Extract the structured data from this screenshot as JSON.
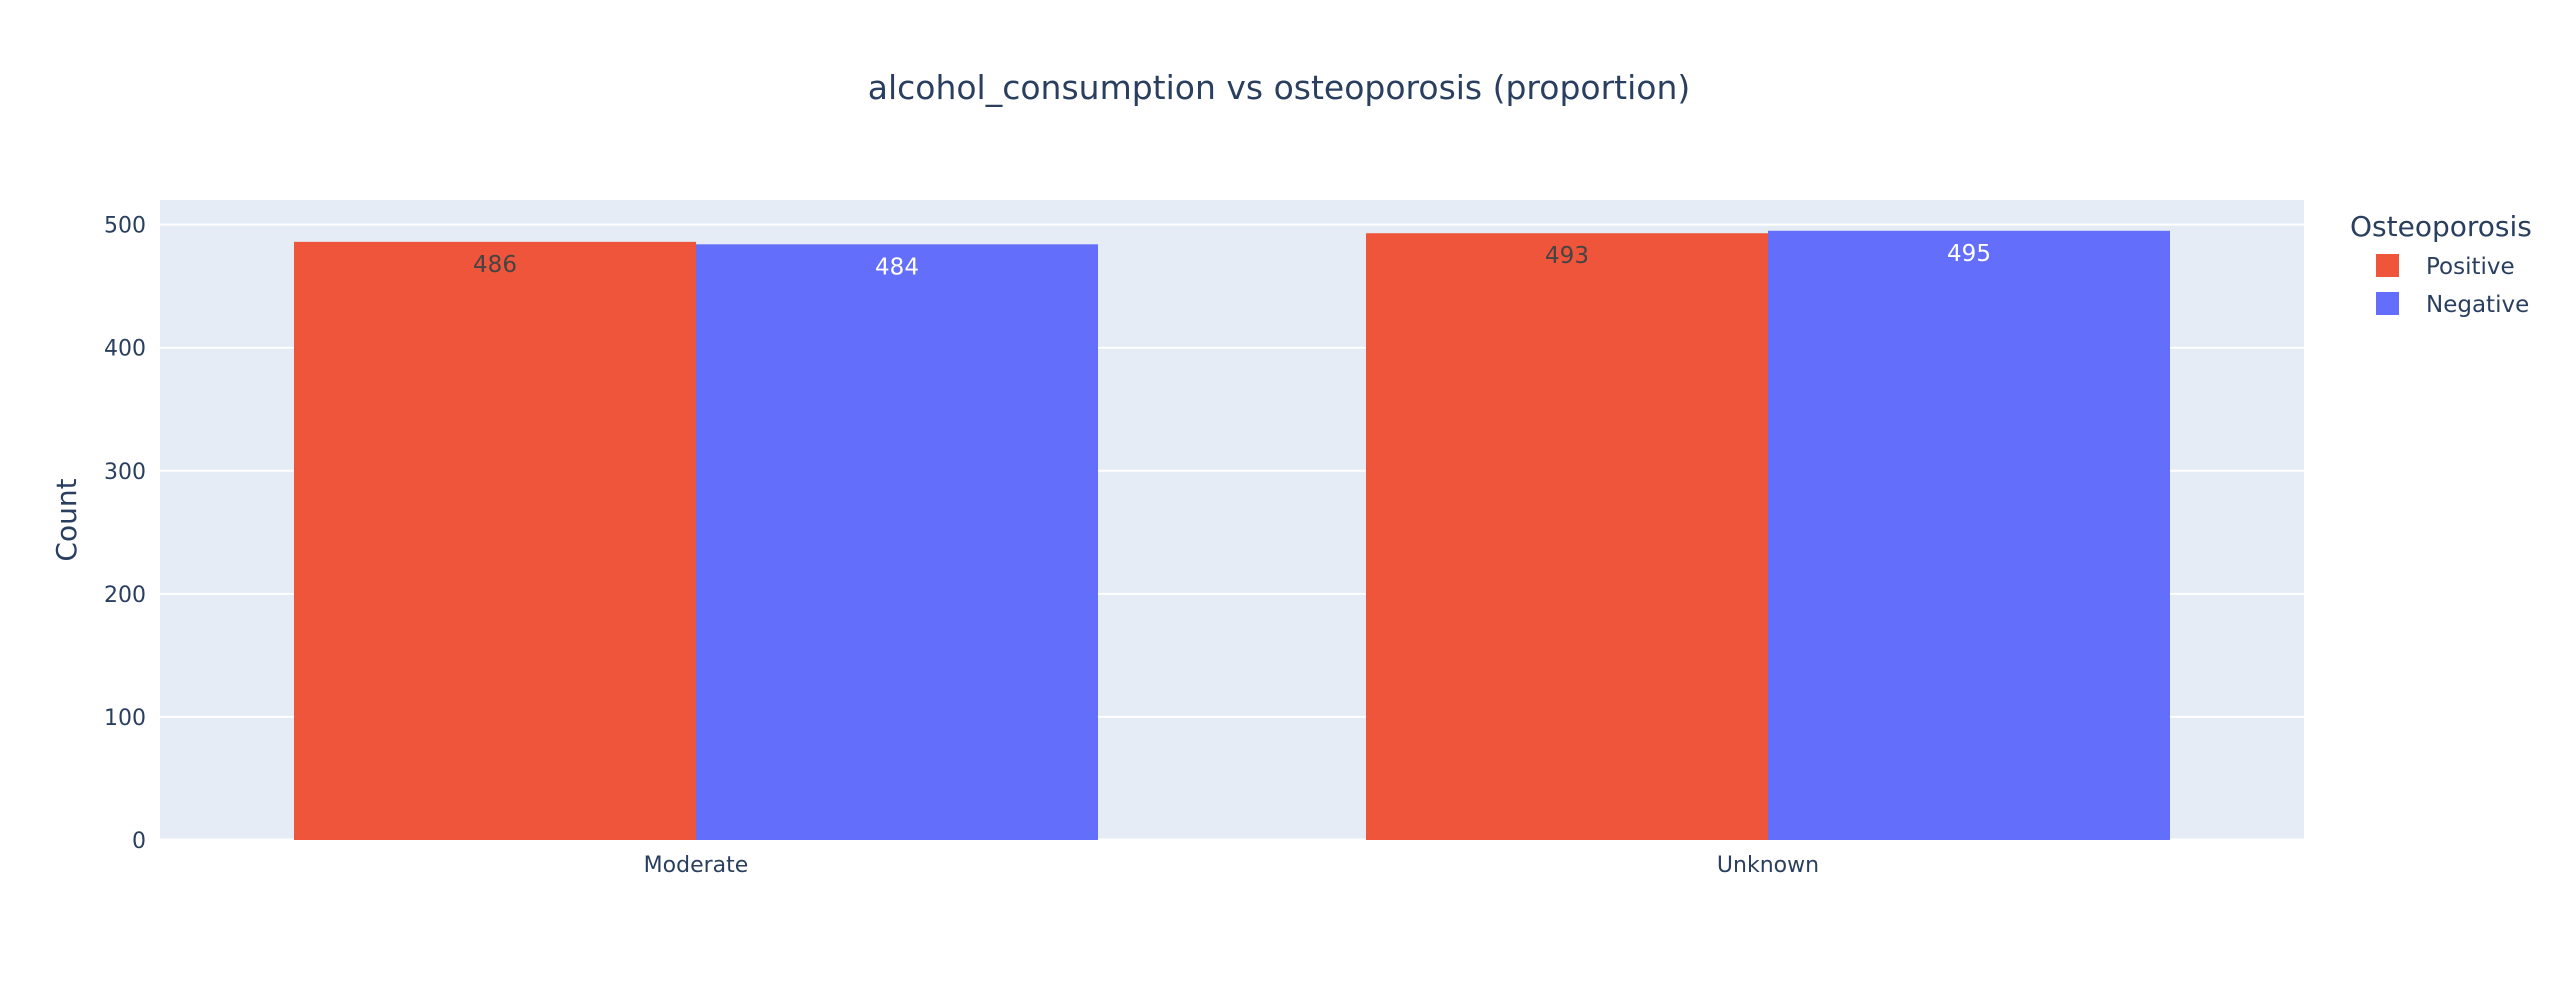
{
  "chart_data": {
    "type": "bar",
    "title": "alcohol_consumption vs osteoporosis (proportion)",
    "xlabel": "",
    "ylabel": "Count",
    "categories": [
      "Moderate",
      "Unknown"
    ],
    "series": [
      {
        "name": "Positive",
        "values": [
          486,
          493
        ],
        "color": "#ef553b",
        "label_color": "#444444"
      },
      {
        "name": "Negative",
        "values": [
          484,
          495
        ],
        "color": "#636efa",
        "label_color": "#ffffff"
      }
    ],
    "ylim": [
      0,
      520
    ],
    "yticks": [
      0,
      100,
      200,
      300,
      400,
      500
    ],
    "grid": true,
    "legend": {
      "title": "Osteoporosis",
      "placement": "top-right"
    },
    "colors": {
      "plot_background": "#e5ecf6",
      "grid": "#ffffff",
      "text": "#2a3f5f"
    }
  }
}
